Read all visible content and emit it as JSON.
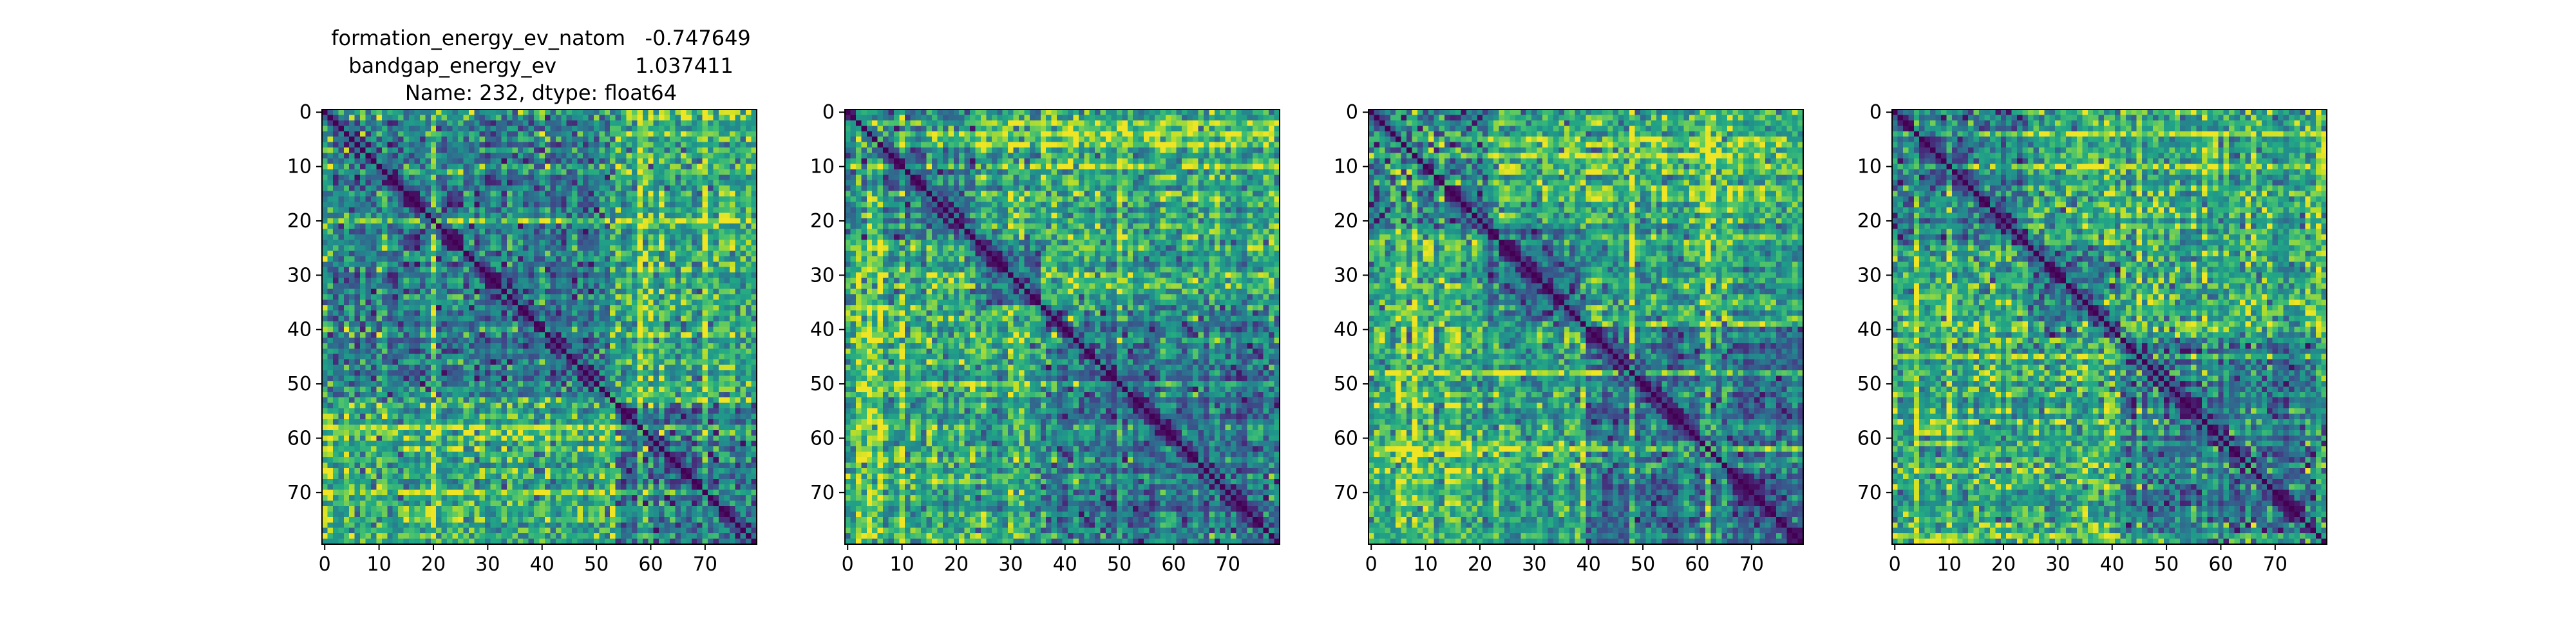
{
  "figure": {
    "title_lines": [
      "formation_energy_ev_natom   -0.747649",
      "bandgap_energy_ev            1.037411",
      "Name: 232, dtype: float64"
    ]
  },
  "chart_data": [
    {
      "type": "heatmap",
      "title": "",
      "xlabel": "",
      "ylabel": "",
      "matrix_size": 80,
      "colormap": "viridis",
      "value_range": [
        0,
        1
      ],
      "diagonal_value": 0,
      "grid": false,
      "xlim": [
        0,
        79
      ],
      "ylim": [
        79,
        0
      ],
      "xticks": [
        0,
        10,
        20,
        30,
        40,
        50,
        60,
        70
      ],
      "yticks": [
        0,
        10,
        20,
        30,
        40,
        50,
        60,
        70
      ],
      "block_boundaries": [
        54
      ],
      "hot_bands": [
        20,
        58,
        70
      ]
    },
    {
      "type": "heatmap",
      "title": "",
      "xlabel": "",
      "ylabel": "",
      "matrix_size": 80,
      "colormap": "viridis",
      "value_range": [
        0,
        1
      ],
      "diagonal_value": 0,
      "grid": false,
      "xlim": [
        0,
        79
      ],
      "ylim": [
        79,
        0
      ],
      "xticks": [
        0,
        10,
        20,
        30,
        40,
        50,
        60,
        70
      ],
      "yticks": [
        0,
        10,
        20,
        30,
        40,
        50,
        60,
        70
      ],
      "block_boundaries": [
        24,
        36
      ],
      "hot_bands": [
        2,
        4,
        6,
        50
      ]
    },
    {
      "type": "heatmap",
      "title": "",
      "xlabel": "",
      "ylabel": "",
      "matrix_size": 80,
      "colormap": "viridis",
      "value_range": [
        0,
        1
      ],
      "diagonal_value": 0,
      "grid": false,
      "xlim": [
        0,
        79
      ],
      "ylim": [
        79,
        0
      ],
      "xticks": [
        0,
        10,
        20,
        30,
        40,
        50,
        60,
        70
      ],
      "yticks": [
        0,
        10,
        20,
        30,
        40,
        50,
        60,
        70
      ],
      "block_boundaries": [
        22,
        40
      ],
      "hot_bands": [
        8,
        48,
        62
      ]
    },
    {
      "type": "heatmap",
      "title": "",
      "xlabel": "",
      "ylabel": "",
      "matrix_size": 80,
      "colormap": "viridis",
      "value_range": [
        0,
        1
      ],
      "diagonal_value": 0,
      "grid": false,
      "xlim": [
        0,
        79
      ],
      "ylim": [
        79,
        0
      ],
      "xticks": [
        0,
        10,
        20,
        30,
        40,
        50,
        60,
        70
      ],
      "yticks": [
        0,
        10,
        20,
        30,
        40,
        50,
        60,
        70
      ],
      "block_boundaries": [
        25,
        42
      ],
      "hot_bands": [
        4,
        10,
        45,
        78
      ]
    }
  ]
}
